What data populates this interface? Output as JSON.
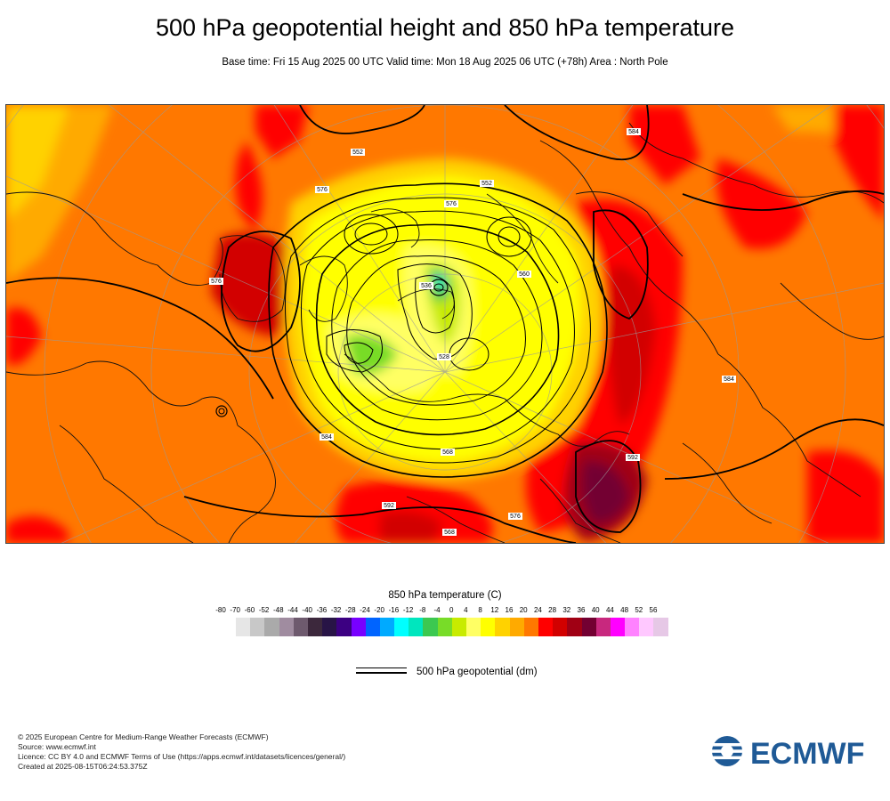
{
  "header": {
    "title": "500 hPa geopotential height and 850 hPa temperature",
    "subtitle": "Base time: Fri 15 Aug 2025 00 UTC Valid time: Mon 18 Aug 2025 06 UTC (+78h) Area : North Pole"
  },
  "map": {
    "contour_labels": [
      {
        "text": "576"
      },
      {
        "text": "552"
      },
      {
        "text": "584"
      },
      {
        "text": "576"
      },
      {
        "text": "560"
      },
      {
        "text": "536"
      },
      {
        "text": "528"
      },
      {
        "text": "552"
      },
      {
        "text": "584"
      },
      {
        "text": "592"
      },
      {
        "text": "568"
      },
      {
        "text": "576"
      },
      {
        "text": "592"
      },
      {
        "text": "584"
      },
      {
        "text": "576"
      },
      {
        "text": "568"
      }
    ]
  },
  "legend": {
    "title": "850 hPa temperature (C)",
    "ticks": [
      "-80",
      "-70",
      "-60",
      "-52",
      "-48",
      "-44",
      "-40",
      "-36",
      "-32",
      "-28",
      "-24",
      "-20",
      "-16",
      "-12",
      "-8",
      "-4",
      "0",
      "4",
      "8",
      "12",
      "16",
      "20",
      "24",
      "28",
      "32",
      "36",
      "40",
      "44",
      "48",
      "52",
      "56"
    ],
    "colors": [
      "#e6e6e6",
      "#c8c8c8",
      "#aaaaaa",
      "#a08ca0",
      "#6e5a6e",
      "#3c283c",
      "#281446",
      "#3c0082",
      "#7800ff",
      "#0064ff",
      "#00aaff",
      "#00ffff",
      "#00e6be",
      "#3cc850",
      "#78dc28",
      "#c8eb00",
      "#ffff64",
      "#ffff00",
      "#ffd200",
      "#ffaa00",
      "#ff7800",
      "#ff0000",
      "#d20000",
      "#a00014",
      "#730032",
      "#c8287e",
      "#ff00ff",
      "#ff82ff",
      "#ffc8ff",
      "#e6c8e6",
      "#e6e6e6"
    ],
    "geo_label": "500 hPa geopotential (dm)"
  },
  "credits": {
    "line1": "© 2025 European Centre for Medium-Range Weather Forecasts (ECMWF)",
    "line2": "Source: www.ecmwf.int",
    "line3": "Licence: CC BY 4.0 and ECMWF Terms of Use (https://apps.ecmwf.int/datasets/licences/general/)",
    "line4": "Created at 2025-08-15T06:24:53.375Z"
  },
  "logo": {
    "text": "ECMWF",
    "color": "#1f5a96"
  }
}
